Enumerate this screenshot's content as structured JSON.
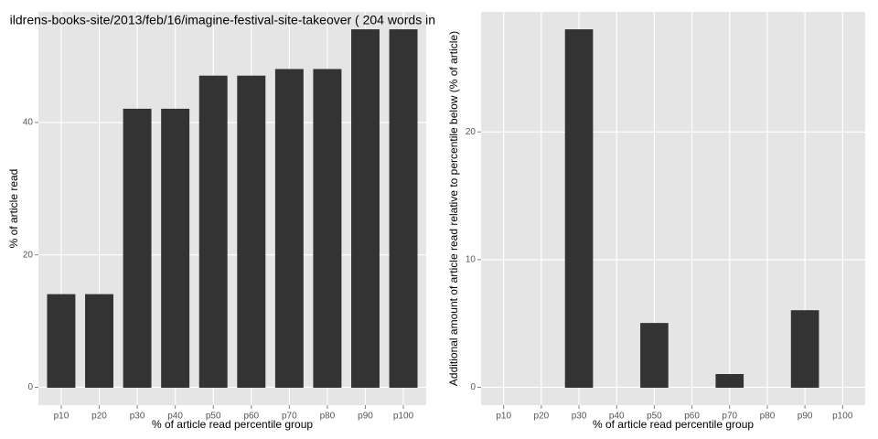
{
  "chart_data": [
    {
      "type": "bar",
      "title": "ildrens-books-site/2013/feb/16/imagine-festival-site-takeover ( 204 words in",
      "x_label": "% of article read percentile group",
      "y_label": "% of article read",
      "categories": [
        "p10",
        "p20",
        "p30",
        "p40",
        "p50",
        "p60",
        "p70",
        "p80",
        "p90",
        "p100"
      ],
      "values": [
        14,
        14,
        42,
        42,
        47,
        47,
        48,
        48,
        54,
        54
      ],
      "color": "#333333",
      "ylim": [
        -2.7,
        56.7
      ],
      "yticks": [
        0,
        20,
        40
      ],
      "grid": true
    },
    {
      "type": "bar",
      "x_label": "% of article read percentile group",
      "y_label": "Additional amount of article read relative to percentile below (% of article)",
      "categories": [
        "p10",
        "p20",
        "p30",
        "p40",
        "p50",
        "p60",
        "p70",
        "p80",
        "p90",
        "p100"
      ],
      "values": [
        0,
        0,
        28,
        0,
        5,
        0,
        1,
        0,
        6,
        0
      ],
      "color": "#333333",
      "ylim": [
        -1.4,
        29.4
      ],
      "yticks": [
        0,
        10,
        20
      ],
      "grid": true
    }
  ]
}
